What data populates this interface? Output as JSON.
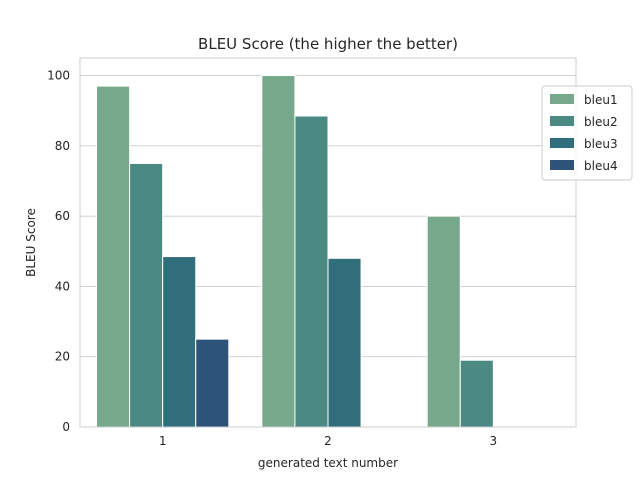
{
  "chart_data": {
    "type": "bar",
    "title": "BLEU Score (the higher the better)",
    "xlabel": "generated text number",
    "ylabel": "BLEU Score",
    "categories": [
      "1",
      "2",
      "3"
    ],
    "series": [
      {
        "name": "bleu1",
        "color": "#76a98b",
        "values": [
          97,
          100,
          60
        ]
      },
      {
        "name": "bleu2",
        "color": "#4b8a83",
        "values": [
          75,
          88.5,
          19
        ]
      },
      {
        "name": "bleu3",
        "color": "#306e7b",
        "values": [
          48.5,
          48,
          0
        ]
      },
      {
        "name": "bleu4",
        "color": "#2d5378",
        "values": [
          25,
          0,
          0
        ]
      }
    ],
    "ylim": [
      0,
      105
    ],
    "yticks": [
      "0",
      "20",
      "40",
      "60",
      "80",
      "100"
    ],
    "grid": "horizontal",
    "legend_position": "top-right"
  }
}
